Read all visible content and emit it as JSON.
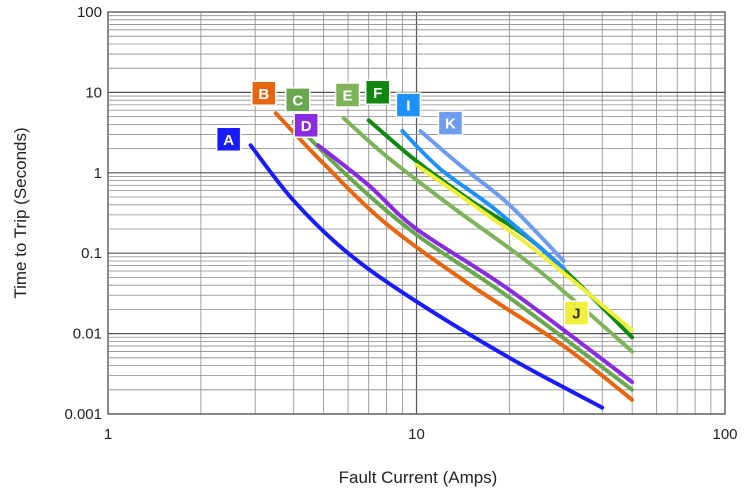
{
  "chart_data": {
    "type": "line",
    "title": "",
    "xlabel": "Fault Current (Amps)",
    "ylabel": "Time to Trip (Seconds)",
    "x_scale": "log",
    "y_scale": "log",
    "xlim": [
      1,
      100
    ],
    "ylim": [
      0.001,
      100
    ],
    "x_ticks": [
      "1",
      "10",
      "100"
    ],
    "y_ticks": [
      "0.001",
      "0.01",
      "0.1",
      "1",
      "10",
      "100"
    ],
    "grid": true,
    "legend": "curve letter badges placed near the start of each curve",
    "series": [
      {
        "name": "A",
        "color": "#1a1aff",
        "label_color": "#ffffff",
        "points": [
          [
            2.9,
            2.2
          ],
          [
            4,
            0.45
          ],
          [
            6,
            0.1
          ],
          [
            10,
            0.025
          ],
          [
            20,
            0.005
          ],
          [
            40,
            0.0012
          ]
        ]
      },
      {
        "name": "B",
        "color": "#e8650f",
        "label_color": "#ffffff",
        "points": [
          [
            3.5,
            5.5
          ],
          [
            5,
            1.3
          ],
          [
            8,
            0.23
          ],
          [
            15,
            0.04
          ],
          [
            30,
            0.007
          ],
          [
            50,
            0.0015
          ]
        ]
      },
      {
        "name": "C",
        "color": "#6aa84f",
        "label_color": "#ffffff",
        "points": [
          [
            4,
            4.3
          ],
          [
            6,
            0.9
          ],
          [
            10,
            0.17
          ],
          [
            20,
            0.028
          ],
          [
            50,
            0.002
          ]
        ]
      },
      {
        "name": "D",
        "color": "#8a2be2",
        "label_color": "#ffffff",
        "points": [
          [
            4.8,
            2.2
          ],
          [
            7,
            0.7
          ],
          [
            10,
            0.2
          ],
          [
            20,
            0.035
          ],
          [
            50,
            0.0025
          ]
        ]
      },
      {
        "name": "E",
        "color": "#7fb359",
        "label_color": "#ffffff",
        "points": [
          [
            5.8,
            4.8
          ],
          [
            8,
            1.6
          ],
          [
            13,
            0.38
          ],
          [
            25,
            0.06
          ],
          [
            50,
            0.006
          ]
        ]
      },
      {
        "name": "F",
        "color": "#118811",
        "label_color": "#ffffff",
        "points": [
          [
            7,
            4.5
          ],
          [
            10,
            1.4
          ],
          [
            15,
            0.45
          ],
          [
            25,
            0.12
          ],
          [
            50,
            0.009
          ]
        ]
      },
      {
        "name": "I",
        "color": "#1e90ff",
        "label_color": "#ffffff",
        "points": [
          [
            9,
            3.3
          ],
          [
            12,
            1.1
          ],
          [
            18,
            0.35
          ],
          [
            30,
            0.065
          ]
        ]
      },
      {
        "name": "J",
        "color": "#f0f03c",
        "label_color": "#333333",
        "points": [
          [
            10,
            1.25
          ],
          [
            15,
            0.42
          ],
          [
            25,
            0.1
          ],
          [
            50,
            0.011
          ]
        ]
      },
      {
        "name": "K",
        "color": "#6e9cf0",
        "label_color": "#ffffff",
        "points": [
          [
            10.3,
            3.3
          ],
          [
            14,
            1.2
          ],
          [
            20,
            0.4
          ],
          [
            30,
            0.08
          ]
        ]
      }
    ]
  }
}
